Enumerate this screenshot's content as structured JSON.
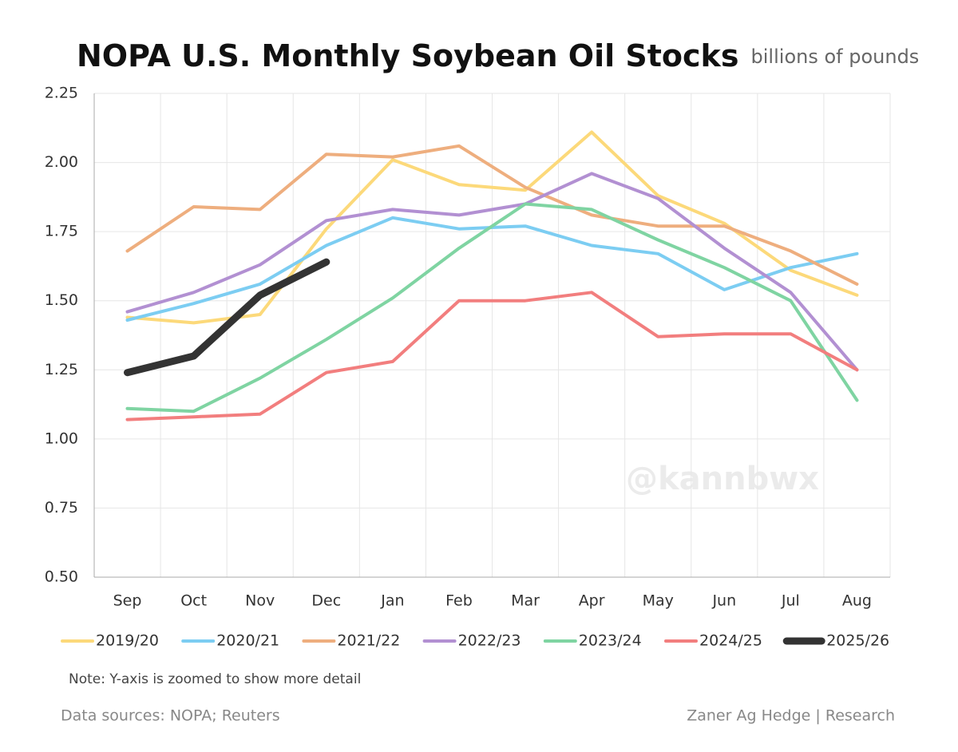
{
  "chart_data": {
    "type": "line",
    "title": "NOPA U.S. Monthly Soybean Oil Stocks",
    "subtitle": "billions of pounds",
    "watermark": "@kannbwx",
    "note": "Note: Y-axis is zoomed to show more detail",
    "source": "Data sources: NOPA; Reuters",
    "credit": "Zaner Ag Hedge | Research",
    "categories": [
      "Sep",
      "Oct",
      "Nov",
      "Dec",
      "Jan",
      "Feb",
      "Mar",
      "Apr",
      "May",
      "Jun",
      "Jul",
      "Aug"
    ],
    "ylim": [
      0.5,
      2.25
    ],
    "yticks": [
      {
        "value": 0.5,
        "label": "0.50"
      },
      0.75,
      {
        "value": 1,
        "label": "1.00"
      },
      1.25,
      {
        "value": 1.5,
        "label": "1.50"
      },
      1.75,
      {
        "value": 2,
        "label": "2.00"
      },
      2.25
    ],
    "grid": true,
    "legend": "bottom",
    "series": [
      {
        "name": "2019/20",
        "color": "#fcd97a",
        "values": [
          1.44,
          1.42,
          1.45,
          1.76,
          2.01,
          1.92,
          1.9,
          2.11,
          1.88,
          1.78,
          1.61,
          1.52
        ]
      },
      {
        "name": "2020/21",
        "color": "#7ccdf2",
        "values": [
          1.43,
          1.49,
          1.56,
          1.7,
          1.8,
          1.76,
          1.77,
          1.7,
          1.67,
          1.54,
          1.62,
          1.67
        ]
      },
      {
        "name": "2021/22",
        "color": "#eeae7e",
        "values": [
          1.68,
          1.84,
          1.83,
          2.03,
          2.02,
          2.06,
          1.91,
          1.81,
          1.77,
          1.77,
          1.68,
          1.56
        ]
      },
      {
        "name": "2022/23",
        "color": "#b290d2",
        "values": [
          1.46,
          1.53,
          1.63,
          1.79,
          1.83,
          1.81,
          1.85,
          1.96,
          1.87,
          1.69,
          1.53,
          1.25
        ]
      },
      {
        "name": "2023/24",
        "color": "#7fd4a2",
        "values": [
          1.11,
          1.1,
          1.22,
          1.36,
          1.51,
          1.69,
          1.85,
          1.83,
          1.72,
          1.62,
          1.5,
          1.14
        ]
      },
      {
        "name": "2024/25",
        "color": "#f27e7e",
        "values": [
          1.07,
          1.08,
          1.09,
          1.24,
          1.28,
          1.5,
          1.5,
          1.53,
          1.37,
          1.38,
          1.38,
          1.25
        ]
      },
      {
        "name": "2025/26",
        "color": "#333333",
        "values": [
          1.24,
          1.3,
          1.52,
          1.64,
          null,
          null,
          null,
          null,
          null,
          null,
          null,
          null
        ]
      }
    ]
  }
}
